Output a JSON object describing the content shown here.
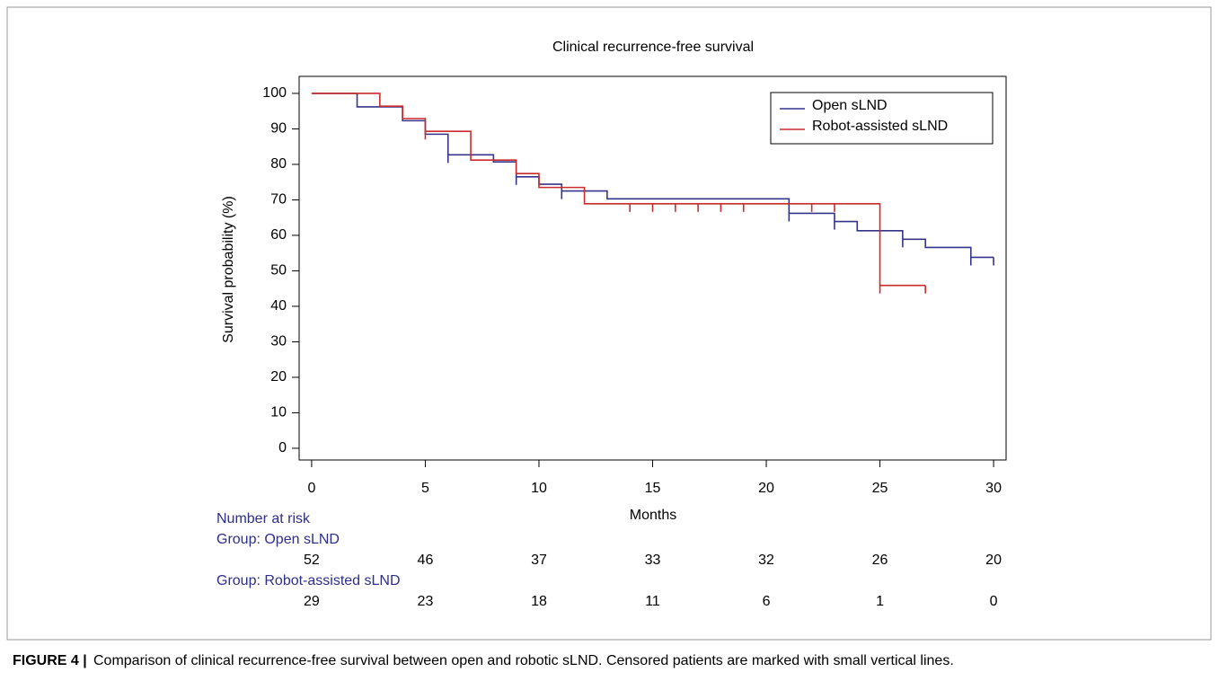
{
  "chart_data": {
    "type": "step",
    "title": "Clinical recurrence-free survival",
    "x_label": "Months",
    "y_label": "Survival probability (%)",
    "xlim": [
      -0.55,
      30.55
    ],
    "ylim": [
      -3.3,
      104.8
    ],
    "xticks": [
      0,
      5,
      10,
      15,
      20,
      25,
      30
    ],
    "yticks": [
      0,
      10,
      20,
      30,
      40,
      50,
      60,
      70,
      80,
      90,
      100
    ],
    "legend": "top-right",
    "series": [
      {
        "name": "Open sLND",
        "color": "#34348a",
        "x": [
          0,
          2,
          4,
          5,
          6,
          8,
          9,
          10,
          11,
          13,
          21,
          23,
          24,
          26,
          27,
          29,
          30
        ],
        "values": [
          100,
          96.2,
          92.3,
          88.5,
          82.7,
          80.7,
          76.5,
          74.4,
          72.5,
          70.3,
          66.2,
          63.9,
          61.3,
          58.9,
          56.6,
          53.8,
          53.8
        ],
        "censored": {
          "x": [
            6,
            9,
            11,
            21,
            23,
            26,
            29,
            30
          ],
          "values": [
            82.7,
            76.5,
            72.5,
            66.2,
            63.9,
            58.9,
            53.8,
            53.8
          ]
        }
      },
      {
        "name": "Robot-assisted sLND",
        "color": "#cc2b2b",
        "x": [
          0,
          3,
          4,
          5,
          7,
          9,
          10,
          12,
          25,
          27
        ],
        "values": [
          100,
          96.4,
          92.9,
          89.3,
          81.2,
          77.4,
          73.5,
          68.9,
          45.9,
          45.9
        ],
        "censored": {
          "x": [
            5,
            14,
            15,
            16,
            17,
            18,
            19,
            22,
            23,
            25,
            27
          ],
          "values": [
            89.3,
            68.9,
            68.9,
            68.9,
            68.9,
            68.9,
            68.9,
            68.9,
            68.9,
            45.9,
            45.9
          ]
        }
      }
    ],
    "risk_table": {
      "title": "Number at risk",
      "groups": [
        {
          "label": "Group: Open sLND",
          "values": [
            52,
            46,
            37,
            33,
            32,
            26,
            20
          ]
        },
        {
          "label": "Group: Robot-assisted sLND",
          "values": [
            29,
            23,
            18,
            11,
            6,
            1,
            0
          ]
        }
      ]
    },
    "caption_label": "FIGURE 4 |",
    "caption": "Comparison of clinical recurrence-free survival between open and robotic sLND. Censored patients are marked with small vertical lines."
  }
}
